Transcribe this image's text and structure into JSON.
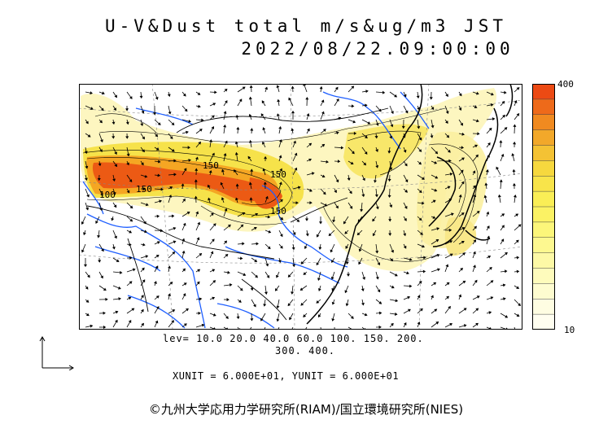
{
  "header": {
    "title": "U-V&Dust total m/s&ug/m3 JST",
    "datetime": "2022/08/22.09:00:00"
  },
  "map": {
    "colors": {
      "land_border": "#000000",
      "river": "#1f5fff",
      "grid": "#888888",
      "dust_low": "#fdf6c0",
      "dust_mid": "#f6e24a",
      "dust_high": "#f5a623",
      "dust_max": "#ec5a14"
    },
    "contour_labels": [
      "150",
      "150",
      "150",
      "150",
      "100"
    ]
  },
  "colorbar": {
    "max_label": "400",
    "min_label": "10",
    "colors": [
      "#ec4a14",
      "#ee6a1a",
      "#f08a20",
      "#f2a82a",
      "#f4c234",
      "#f6d83e",
      "#f8e44a",
      "#faee56",
      "#fbf264",
      "#fcf67a",
      "#fdf890",
      "#fdf9a6",
      "#fefbbc",
      "#fefcd0",
      "#fefde2",
      "#fffef0"
    ]
  },
  "legend": {
    "levels_line1": "lev= 10.0 20.0 40.0 60.0 100. 150. 200.",
    "levels_line2": "300. 400."
  },
  "units": {
    "text": "XUNIT = 6.000E+01, YUNIT = 6.000E+01"
  },
  "footer": {
    "credit": "©九州大学応用力学研究所(RIAM)/国立環境研究所(NIES)"
  }
}
